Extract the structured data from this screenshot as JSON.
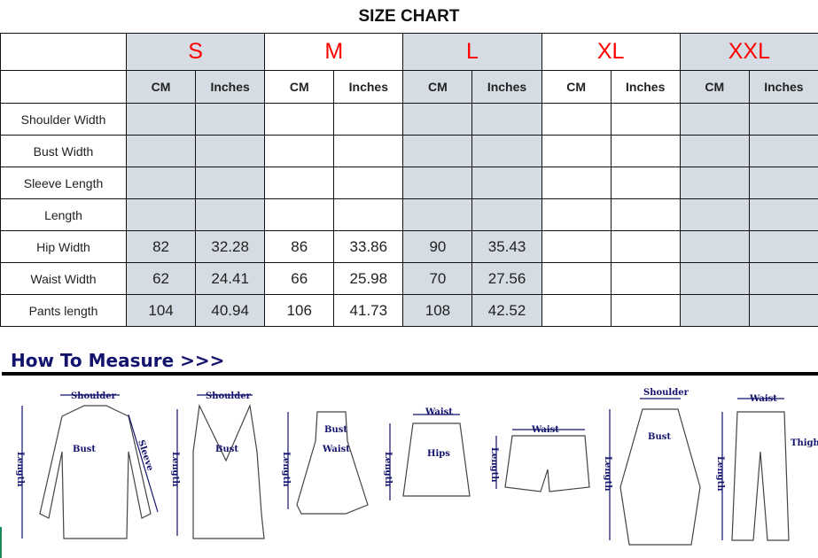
{
  "title": "SIZE CHART",
  "sizes": [
    "S",
    "M",
    "L",
    "XL",
    "XXL"
  ],
  "units": [
    "CM",
    "Inches"
  ],
  "rows": [
    {
      "label": "Shoulder Width",
      "values": [
        "",
        "",
        "",
        "",
        "",
        "",
        "",
        "",
        "",
        ""
      ]
    },
    {
      "label": "Bust Width",
      "values": [
        "",
        "",
        "",
        "",
        "",
        "",
        "",
        "",
        "",
        ""
      ]
    },
    {
      "label": "Sleeve Length",
      "values": [
        "",
        "",
        "",
        "",
        "",
        "",
        "",
        "",
        "",
        ""
      ]
    },
    {
      "label": "Length",
      "values": [
        "",
        "",
        "",
        "",
        "",
        "",
        "",
        "",
        "",
        ""
      ]
    },
    {
      "label": "Hip Width",
      "values": [
        "82",
        "32.28",
        "86",
        "33.86",
        "90",
        "35.43",
        "",
        "",
        "",
        ""
      ]
    },
    {
      "label": "Waist Width",
      "values": [
        "62",
        "24.41",
        "66",
        "25.98",
        "70",
        "27.56",
        "",
        "",
        "",
        ""
      ]
    },
    {
      "label": "Pants length",
      "values": [
        "104",
        "40.94",
        "106",
        "41.73",
        "108",
        "42.52",
        "",
        "",
        "",
        ""
      ]
    }
  ],
  "colors": {
    "shade": "#d6dce4",
    "size_label": "#ff0000",
    "measure_heading": "#13136e"
  },
  "measure": {
    "heading": "How To Measure >>>",
    "labels": {
      "shoulder": "Shoulder",
      "bust": "Bust",
      "sleeve": "Sleeve",
      "length": "Length",
      "waist": "Waist",
      "hips": "Hips",
      "thigh": "Thigh"
    }
  }
}
